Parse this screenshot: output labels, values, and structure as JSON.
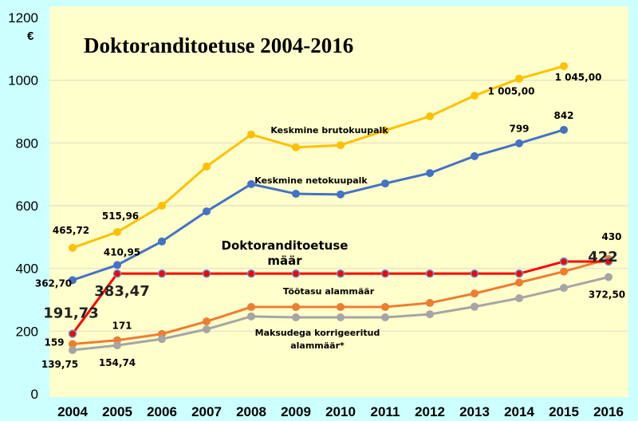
{
  "chart_data": {
    "type": "line",
    "title": "Doktoranditoetuse 2004-2016",
    "ylabel": "€",
    "xlabel": "",
    "ylim": [
      0,
      1200
    ],
    "yticks": [
      0,
      200,
      400,
      600,
      800,
      1000,
      1200
    ],
    "grid": true,
    "categories": [
      "2004",
      "2005",
      "2006",
      "2007",
      "2008",
      "2009",
      "2010",
      "2011",
      "2012",
      "2013",
      "2014",
      "2015",
      "2016"
    ],
    "series": [
      {
        "name": "Keskmine brutokuupalk",
        "color": "#ffc000",
        "values": [
          465.72,
          515.96,
          600,
          725,
          827,
          786,
          793,
          840,
          885,
          951,
          1005,
          1045,
          null
        ],
        "labels": [
          {
            "i": 0,
            "text": "465,72"
          },
          {
            "i": 1,
            "text": "515,96"
          },
          {
            "i": 10,
            "text": "1 005,00"
          },
          {
            "i": 11,
            "text": "1 045,00"
          }
        ]
      },
      {
        "name": "Keskmine netokuupalk",
        "color": "#4472c4",
        "values": [
          362.7,
          410.95,
          486,
          582,
          669,
          638,
          636,
          671,
          704,
          758,
          799,
          842,
          null
        ],
        "labels": [
          {
            "i": 0,
            "text": "362,70"
          },
          {
            "i": 1,
            "text": "410,95"
          },
          {
            "i": 10,
            "text": "799"
          },
          {
            "i": 11,
            "text": "842"
          }
        ]
      },
      {
        "name": "Doktoranditoetuse määr",
        "color": "#ff0000",
        "values": [
          191.73,
          383.47,
          383.47,
          383.47,
          383.47,
          383.47,
          383.47,
          383.47,
          383.47,
          383.47,
          383.47,
          422,
          422
        ],
        "labels": [
          {
            "i": 0,
            "text": "191,73"
          },
          {
            "i": 1,
            "text": "383,47"
          },
          {
            "i": 12,
            "text": "422"
          }
        ]
      },
      {
        "name": "Töötasu alammäär",
        "color": "#ed7d31",
        "values": [
          159,
          171,
          191,
          231,
          277,
          277,
          277,
          277,
          290,
          320,
          355,
          390,
          430
        ],
        "labels": [
          {
            "i": 0,
            "text": "159"
          },
          {
            "i": 1,
            "text": "171"
          },
          {
            "i": 12,
            "text": "430"
          }
        ]
      },
      {
        "name": "Maksudega korrigeeritud alammäär*",
        "color": "#a5a5a5",
        "values": [
          139.75,
          154.74,
          175,
          206,
          247,
          244,
          244,
          244,
          254,
          278,
          305,
          338,
          372.5
        ],
        "labels": [
          {
            "i": 0,
            "text": "139,75"
          },
          {
            "i": 1,
            "text": "154,74"
          },
          {
            "i": 12,
            "text": "372,50"
          }
        ]
      }
    ],
    "series_annotations": [
      "Keskmine brutokuupalk",
      "Keskmine netokuupalk",
      "Doktoranditoetuse",
      "määr",
      "Töötasu alammäär",
      "Maksudega korrigeeritud",
      "alammäär*"
    ]
  }
}
